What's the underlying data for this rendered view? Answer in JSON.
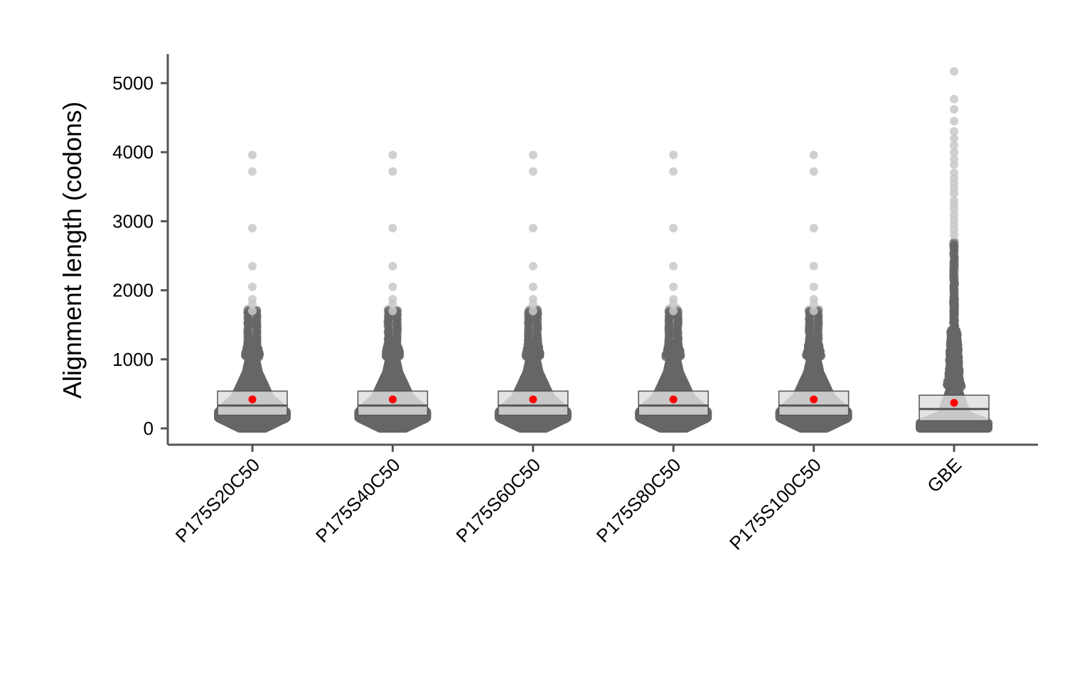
{
  "chart_data": {
    "type": "beeswarm",
    "title": "",
    "xlabel": "",
    "ylabel": "Alignment length (codons)",
    "ylim": [
      -230,
      5450
    ],
    "y_ticks": [
      0,
      1000,
      2000,
      3000,
      4000,
      5000
    ],
    "grid": false,
    "legend": "none",
    "colors": {
      "points_dense": "#666666",
      "points_sparse": "#c8c8c8",
      "box_fill": "#dedede",
      "box_stroke": "#555555",
      "median_line": "#555555",
      "mean_marker": "#ff0000",
      "axis": "#555555"
    },
    "categories": [
      "P175S20C50",
      "P175S40C50",
      "P175S60C50",
      "P175S80C50",
      "P175S100C50",
      "GBE"
    ],
    "series": [
      {
        "category": "P175S20C50",
        "box": {
          "q1": 190,
          "median": 330,
          "q3": 540
        },
        "mean": 420,
        "outliers": [
          3960,
          3720,
          2900,
          2350,
          2050,
          1870,
          1800,
          1700
        ]
      },
      {
        "category": "P175S40C50",
        "box": {
          "q1": 190,
          "median": 330,
          "q3": 540
        },
        "mean": 420,
        "outliers": [
          3960,
          3720,
          2900,
          2350,
          2050,
          1870,
          1800,
          1700
        ]
      },
      {
        "category": "P175S60C50",
        "box": {
          "q1": 190,
          "median": 330,
          "q3": 540
        },
        "mean": 420,
        "outliers": [
          3960,
          3720,
          2900,
          2350,
          2050,
          1870,
          1800,
          1700
        ]
      },
      {
        "category": "P175S80C50",
        "box": {
          "q1": 190,
          "median": 330,
          "q3": 540
        },
        "mean": 420,
        "outliers": [
          3960,
          3720,
          2900,
          2350,
          2050,
          1870,
          1800,
          1700
        ]
      },
      {
        "category": "P175S100C50",
        "box": {
          "q1": 190,
          "median": 330,
          "q3": 540
        },
        "mean": 420,
        "outliers": [
          3960,
          3720,
          2900,
          2350,
          2050,
          1870,
          1800,
          1700
        ]
      },
      {
        "category": "GBE",
        "box": {
          "q1": 110,
          "median": 280,
          "q3": 480
        },
        "mean": 370,
        "outliers": [
          5170,
          4770,
          4620,
          4450,
          4300,
          4200,
          4100,
          4000,
          3900,
          3820,
          3700,
          3620,
          3550,
          3480,
          3400,
          3300,
          3250,
          3180,
          3100,
          3020,
          2950,
          2880,
          2800
        ]
      }
    ]
  }
}
